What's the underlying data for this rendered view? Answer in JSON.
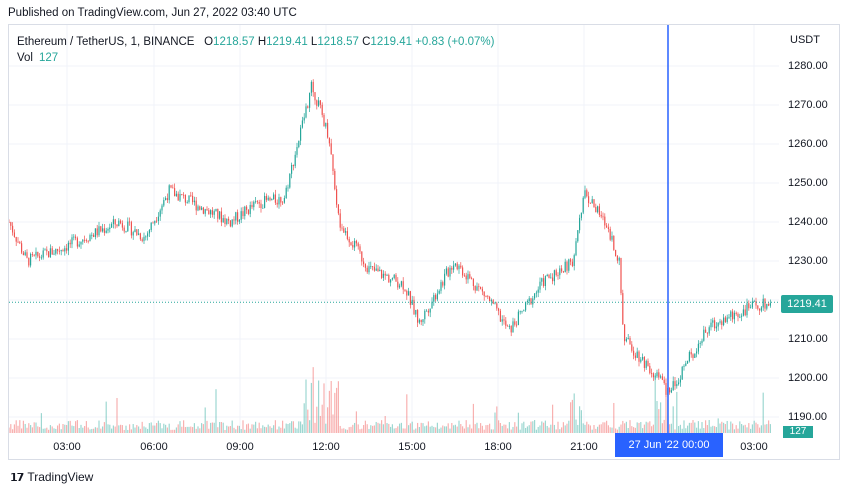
{
  "published_text": "Published on TradingView.com, Jun 27, 2022 03:40 UTC",
  "legend": {
    "symbol": "Ethereum / TetherUS, 1, BINANCE",
    "open_label": "O",
    "open": "1218.57",
    "high_label": "H",
    "high": "1219.41",
    "low_label": "L",
    "low": "1218.57",
    "close_label": "C",
    "close": "1219.41",
    "change": "+0.83 (+0.07%)",
    "vol_label": "Vol",
    "vol": "127"
  },
  "price_scale": {
    "unit": "USDT",
    "ticks": [
      "1280.00",
      "1270.00",
      "1260.00",
      "1250.00",
      "1240.00",
      "1230.00",
      "1220.00",
      "1210.00",
      "1200.00",
      "1190.00"
    ],
    "last_price": "1219.41",
    "last_volume": "127"
  },
  "time_scale": {
    "ticks": [
      "03:00",
      "06:00",
      "09:00",
      "12:00",
      "15:00",
      "18:00",
      "21:00",
      "03:00"
    ],
    "crosshair_label": "27 Jun '22   00:00"
  },
  "colors": {
    "up": "#26a69a",
    "down": "#ef5350",
    "crosshair": "#2962ff",
    "grid": "#f0f3fa"
  },
  "chart_data": {
    "type": "candlestick",
    "symbol": "ETHUSDT",
    "interval": "1",
    "ylim": [
      1188,
      1285
    ],
    "last_close": 1219.41,
    "anchors": [
      {
        "t": "01:00",
        "price": 1240
      },
      {
        "t": "01:30",
        "price": 1230
      },
      {
        "t": "03:00",
        "price": 1233
      },
      {
        "t": "05:00",
        "price": 1240
      },
      {
        "t": "06:00",
        "price": 1236
      },
      {
        "t": "07:00",
        "price": 1248
      },
      {
        "t": "09:00",
        "price": 1240
      },
      {
        "t": "10:00",
        "price": 1245
      },
      {
        "t": "11:00",
        "price": 1246
      },
      {
        "t": "12:00",
        "price": 1275
      },
      {
        "t": "12:40",
        "price": 1262
      },
      {
        "t": "13:00",
        "price": 1240
      },
      {
        "t": "14:00",
        "price": 1228
      },
      {
        "t": "15:00",
        "price": 1224
      },
      {
        "t": "15:30",
        "price": 1214
      },
      {
        "t": "17:00",
        "price": 1230
      },
      {
        "t": "18:00",
        "price": 1220
      },
      {
        "t": "19:00",
        "price": 1212
      },
      {
        "t": "20:00",
        "price": 1225
      },
      {
        "t": "21:00",
        "price": 1230
      },
      {
        "t": "21:30",
        "price": 1248
      },
      {
        "t": "22:30",
        "price": 1238
      },
      {
        "t": "23:00",
        "price": 1230
      },
      {
        "t": "23:20",
        "price": 1210
      },
      {
        "t": "00:00",
        "price": 1200
      },
      {
        "t": "00:30",
        "price": 1196
      },
      {
        "t": "01:00",
        "price": 1205
      },
      {
        "t": "02:00",
        "price": 1213
      },
      {
        "t": "03:00",
        "price": 1218
      },
      {
        "t": "03:40",
        "price": 1219.41
      }
    ]
  }
}
